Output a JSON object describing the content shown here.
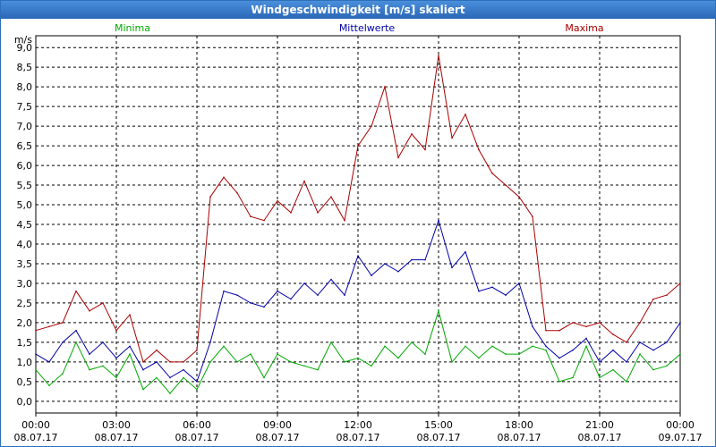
{
  "window": {
    "title": "Windgeschwindigkeit [m/s] skaliert"
  },
  "chart_data": {
    "type": "line",
    "title": "Windgeschwindigkeit [m/s] skaliert",
    "ylabel": "m/s",
    "xlabel": "",
    "ylim": [
      -0.3,
      9.3
    ],
    "xlim": [
      0,
      24
    ],
    "y_ticks": [
      "0,0",
      "0,5",
      "1,0",
      "1,5",
      "2,0",
      "2,5",
      "3,0",
      "3,5",
      "4,0",
      "4,5",
      "5,0",
      "5,5",
      "6,0",
      "6,5",
      "7,0",
      "7,5",
      "8,0",
      "8,5",
      "9,0"
    ],
    "x_ticks": [
      {
        "time": "00:00",
        "date": "08.07.17"
      },
      {
        "time": "03:00",
        "date": "08.07.17"
      },
      {
        "time": "06:00",
        "date": "08.07.17"
      },
      {
        "time": "09:00",
        "date": "08.07.17"
      },
      {
        "time": "12:00",
        "date": "08.07.17"
      },
      {
        "time": "15:00",
        "date": "08.07.17"
      },
      {
        "time": "18:00",
        "date": "08.07.17"
      },
      {
        "time": "21:00",
        "date": "08.07.17"
      },
      {
        "time": "00:00",
        "date": "09.07.17"
      }
    ],
    "legend_position": "top",
    "grid": true,
    "series": [
      {
        "name": "Minima",
        "color": "#00aa00",
        "x": [
          0,
          0.5,
          1,
          1.5,
          2,
          2.5,
          3,
          3.5,
          4,
          4.5,
          5,
          5.5,
          6,
          6.5,
          7,
          7.5,
          8,
          8.5,
          9,
          9.5,
          10,
          10.5,
          11,
          11.5,
          12,
          12.5,
          13,
          13.5,
          14,
          14.5,
          15,
          15.5,
          16,
          16.5,
          17,
          17.5,
          18,
          18.5,
          19,
          19.5,
          20,
          20.5,
          21,
          21.5,
          22,
          22.5,
          23,
          23.5,
          24
        ],
        "values": [
          0.8,
          0.4,
          0.7,
          1.5,
          0.8,
          0.9,
          0.6,
          1.2,
          0.3,
          0.6,
          0.2,
          0.6,
          0.3,
          1.0,
          1.4,
          1.0,
          1.2,
          0.6,
          1.2,
          1.0,
          0.9,
          0.8,
          1.5,
          1.0,
          1.1,
          0.9,
          1.4,
          1.1,
          1.5,
          1.2,
          2.3,
          1.0,
          1.4,
          1.1,
          1.4,
          1.2,
          1.2,
          1.4,
          1.3,
          0.5,
          0.6,
          1.4,
          0.6,
          0.8,
          0.5,
          1.2,
          0.8,
          0.9,
          1.2
        ]
      },
      {
        "name": "Mittelwerte",
        "color": "#0000aa",
        "x": [
          0,
          0.5,
          1,
          1.5,
          2,
          2.5,
          3,
          3.5,
          4,
          4.5,
          5,
          5.5,
          6,
          6.5,
          7,
          7.5,
          8,
          8.5,
          9,
          9.5,
          10,
          10.5,
          11,
          11.5,
          12,
          12.5,
          13,
          13.5,
          14,
          14.5,
          15,
          15.5,
          16,
          16.5,
          17,
          17.5,
          18,
          18.5,
          19,
          19.5,
          20,
          20.5,
          21,
          21.5,
          22,
          22.5,
          23,
          23.5,
          24
        ],
        "values": [
          1.2,
          1.0,
          1.5,
          1.8,
          1.2,
          1.5,
          1.1,
          1.4,
          0.8,
          1.0,
          0.6,
          0.8,
          0.5,
          1.5,
          2.8,
          2.7,
          2.5,
          2.4,
          2.8,
          2.6,
          3.0,
          2.7,
          3.1,
          2.7,
          3.7,
          3.2,
          3.5,
          3.3,
          3.6,
          3.6,
          4.6,
          3.4,
          3.8,
          2.8,
          2.9,
          2.7,
          3.0,
          1.9,
          1.4,
          1.1,
          1.3,
          1.6,
          1.0,
          1.3,
          1.0,
          1.5,
          1.3,
          1.5,
          2.0
        ]
      },
      {
        "name": "Maxima",
        "color": "#aa0000",
        "x": [
          0,
          0.5,
          1,
          1.5,
          2,
          2.5,
          3,
          3.5,
          4,
          4.5,
          5,
          5.5,
          6,
          6.5,
          7,
          7.5,
          8,
          8.5,
          9,
          9.5,
          10,
          10.5,
          11,
          11.5,
          12,
          12.5,
          13,
          13.5,
          14,
          14.5,
          15,
          15.5,
          16,
          16.5,
          17,
          17.5,
          18,
          18.5,
          19,
          19.5,
          20,
          20.5,
          21,
          21.5,
          22,
          22.5,
          23,
          23.5,
          24
        ],
        "values": [
          1.8,
          1.9,
          2.0,
          2.8,
          2.3,
          2.5,
          1.8,
          2.2,
          1.0,
          1.3,
          1.0,
          1.0,
          1.3,
          5.2,
          5.7,
          5.3,
          4.7,
          4.6,
          5.1,
          4.8,
          5.6,
          4.8,
          5.2,
          4.6,
          6.5,
          7.0,
          8.0,
          6.2,
          6.8,
          6.4,
          8.8,
          6.7,
          7.3,
          6.4,
          5.8,
          5.5,
          5.2,
          4.7,
          1.8,
          1.8,
          2.0,
          1.9,
          2.0,
          1.7,
          1.5,
          2.0,
          2.6,
          2.7,
          3.0
        ]
      }
    ]
  }
}
